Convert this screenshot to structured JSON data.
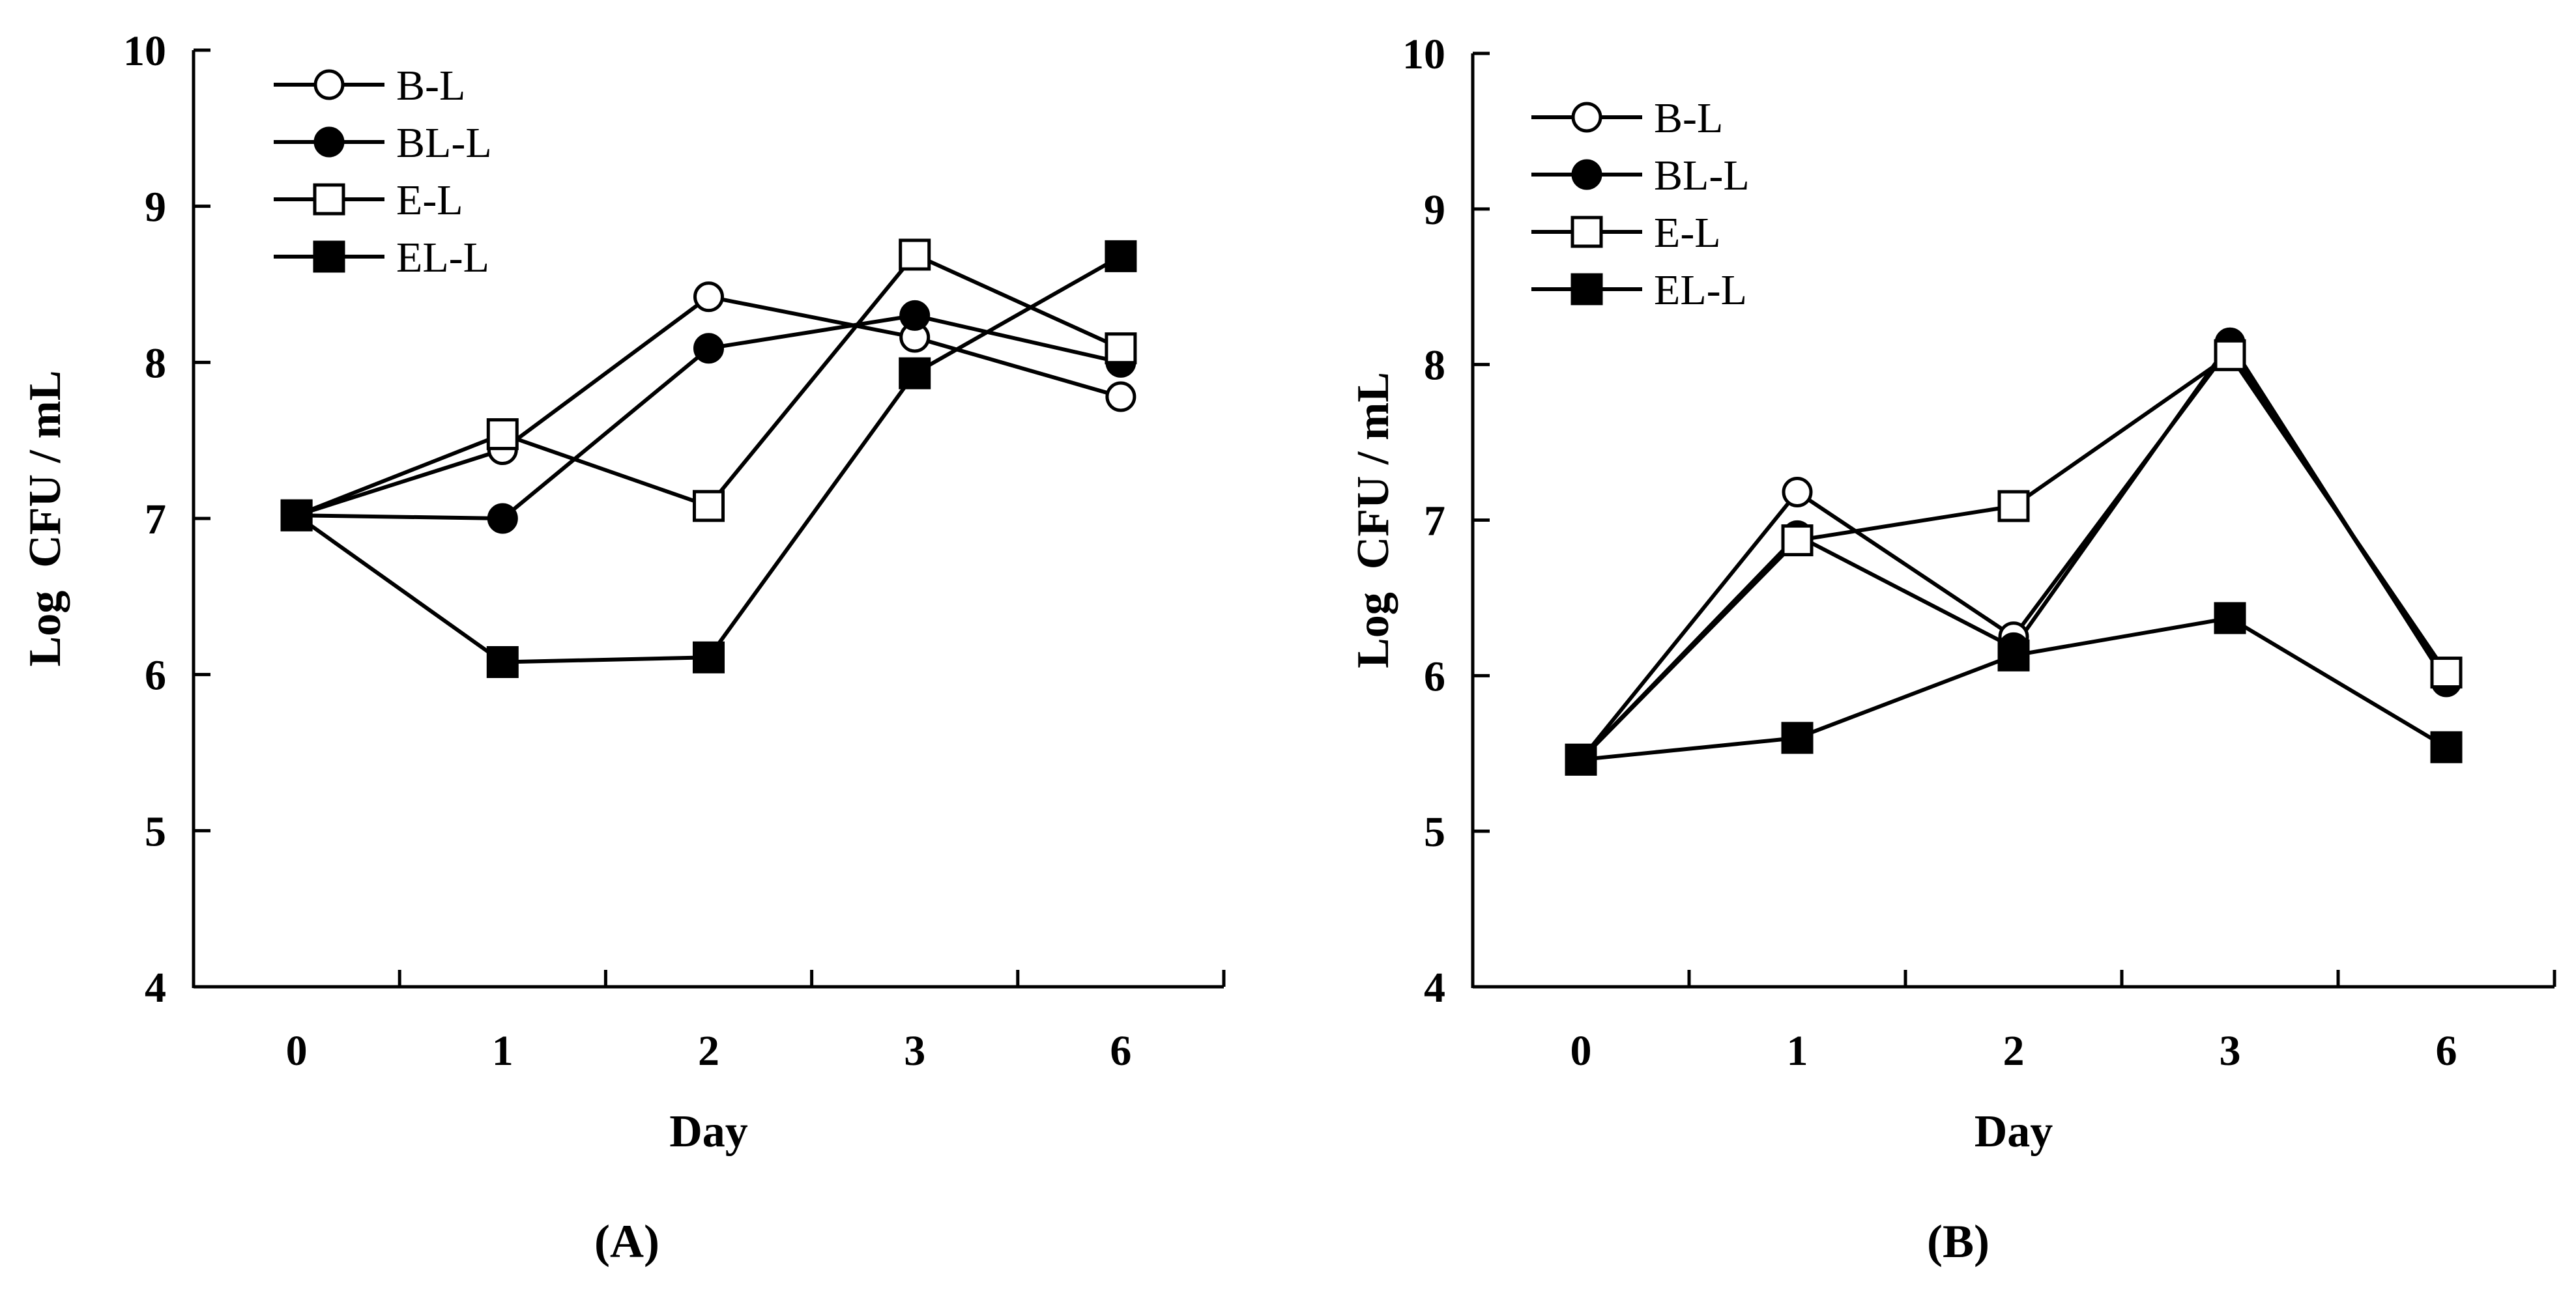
{
  "chart_data": [
    {
      "type": "line",
      "panel_label": "(A)",
      "xlabel": "Day",
      "ylabel": "Log  CFU / mL",
      "categories": [
        "0",
        "1",
        "2",
        "3",
        "6"
      ],
      "ylim": [
        4,
        10
      ],
      "yticks": [
        "4",
        "5",
        "6",
        "7",
        "8",
        "9",
        "10"
      ],
      "grid": false,
      "legend": "top-left",
      "series": [
        {
          "name": "B-L",
          "marker": "circle",
          "filled": false,
          "values": [
            7.02,
            7.44,
            8.42,
            8.16,
            7.78
          ]
        },
        {
          "name": "BL-L",
          "marker": "circle",
          "filled": true,
          "values": [
            7.02,
            7.0,
            8.09,
            8.3,
            8.0
          ]
        },
        {
          "name": "E-L",
          "marker": "square",
          "filled": false,
          "values": [
            7.02,
            7.54,
            7.08,
            8.69,
            8.09
          ]
        },
        {
          "name": "EL-L",
          "marker": "square",
          "filled": true,
          "values": [
            7.02,
            6.08,
            6.11,
            7.93,
            8.68
          ]
        }
      ]
    },
    {
      "type": "line",
      "panel_label": "(B)",
      "xlabel": "Day",
      "ylabel": "Log  CFU / mL",
      "categories": [
        "0",
        "1",
        "2",
        "3",
        "6"
      ],
      "ylim": [
        4,
        10
      ],
      "yticks": [
        "4",
        "5",
        "6",
        "7",
        "8",
        "9",
        "10"
      ],
      "grid": false,
      "legend": "top-left",
      "series": [
        {
          "name": "B-L",
          "marker": "circle",
          "filled": false,
          "values": [
            5.46,
            7.18,
            6.25,
            8.11,
            5.97
          ]
        },
        {
          "name": "BL-L",
          "marker": "circle",
          "filled": true,
          "values": [
            5.46,
            6.9,
            6.18,
            8.14,
            5.96
          ]
        },
        {
          "name": "E-L",
          "marker": "square",
          "filled": false,
          "values": [
            5.46,
            6.87,
            7.09,
            8.06,
            6.02
          ]
        },
        {
          "name": "EL-L",
          "marker": "square",
          "filled": true,
          "values": [
            5.46,
            5.6,
            6.13,
            6.37,
            5.54
          ]
        }
      ]
    }
  ]
}
